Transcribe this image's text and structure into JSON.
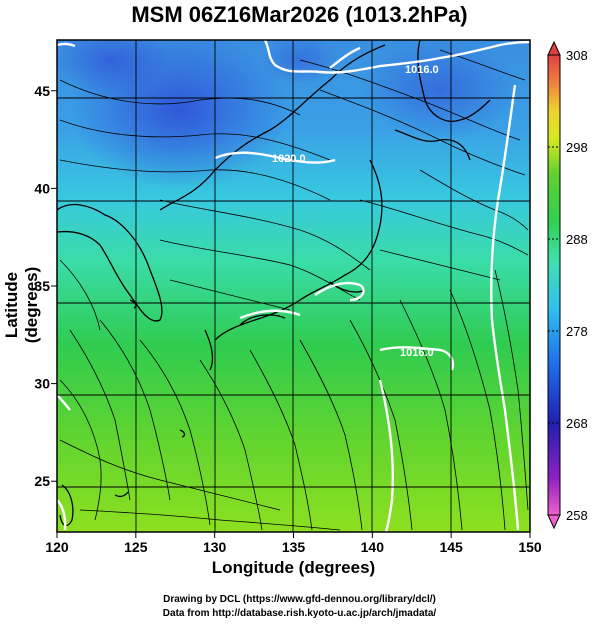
{
  "title": "MSM 06Z16Mar2026 (1013.2hPa)",
  "xlabel": "Longitude (degrees)",
  "ylabel": "Latitude  (degrees)",
  "footer": {
    "line1": "Drawing by DCL (https://www.gfd-dennou.org/library/dcl/)",
    "line2": "Data from http://database.rish.kyoto-u.ac.jp/arch/jmadata/"
  },
  "map": {
    "lon_range": [
      120,
      150
    ],
    "lat_range": [
      22.4,
      47.6
    ],
    "x_ticks": [
      "120",
      "125",
      "130",
      "135",
      "140",
      "145",
      "150"
    ],
    "y_ticks": [
      "25",
      "30",
      "35",
      "40",
      "45"
    ],
    "contour_labels": [
      "1016.0",
      "1020.0",
      "1016.0"
    ]
  },
  "colorbar": {
    "ticks": [
      "308",
      "298",
      "288",
      "278",
      "268",
      "258"
    ],
    "min": 258,
    "max": 308,
    "colors": [
      "#e060d0",
      "#a020c0",
      "#3020b0",
      "#2060e0",
      "#30b8f0",
      "#40e0c0",
      "#30d060",
      "#50d040",
      "#c0e020",
      "#f0e030",
      "#f0a040",
      "#e05040"
    ]
  }
}
